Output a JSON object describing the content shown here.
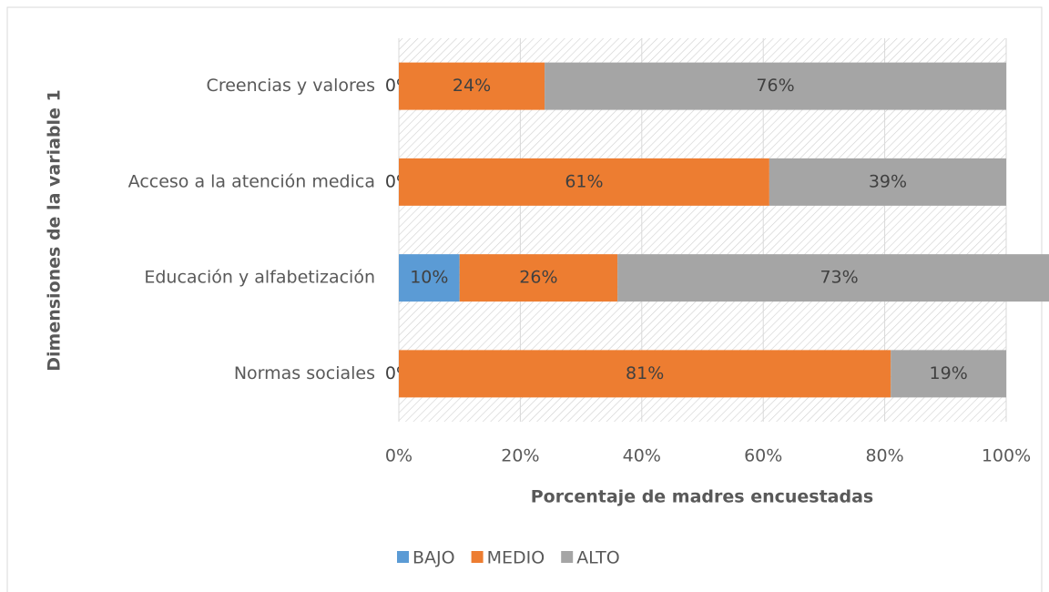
{
  "chart_data": {
    "type": "stacked_barh",
    "categories": [
      "Creencias y valores",
      "Acceso a la atención medica",
      "Educación y alfabetización",
      "Normas sociales"
    ],
    "series": [
      {
        "name": "BAJO",
        "color": "#5b9bd5",
        "values": [
          0,
          0,
          10,
          0
        ],
        "value_labels": [
          "0%",
          "0%",
          "10%",
          "0%"
        ]
      },
      {
        "name": "MEDIO",
        "color": "#ed7d31",
        "values": [
          24,
          61,
          26,
          81
        ],
        "value_labels": [
          "24%",
          "61%",
          "26%",
          "81%"
        ]
      },
      {
        "name": "ALTO",
        "color": "#a5a5a5",
        "values": [
          76,
          39,
          73,
          19
        ],
        "value_labels": [
          "76%",
          "39%",
          "73%",
          "19%"
        ]
      }
    ],
    "xlim": [
      0,
      100
    ],
    "xticks": [
      {
        "value": 0,
        "label": "0%"
      },
      {
        "value": 20,
        "label": "20%"
      },
      {
        "value": 40,
        "label": "40%"
      },
      {
        "value": 60,
        "label": "60%"
      },
      {
        "value": 80,
        "label": "80%"
      },
      {
        "value": 100,
        "label": "100%"
      }
    ],
    "x_label": "Porcentaje de madres encuestadas",
    "y_label": "Dimensiones de la variable 1",
    "grid": true,
    "legend": "bottom"
  }
}
